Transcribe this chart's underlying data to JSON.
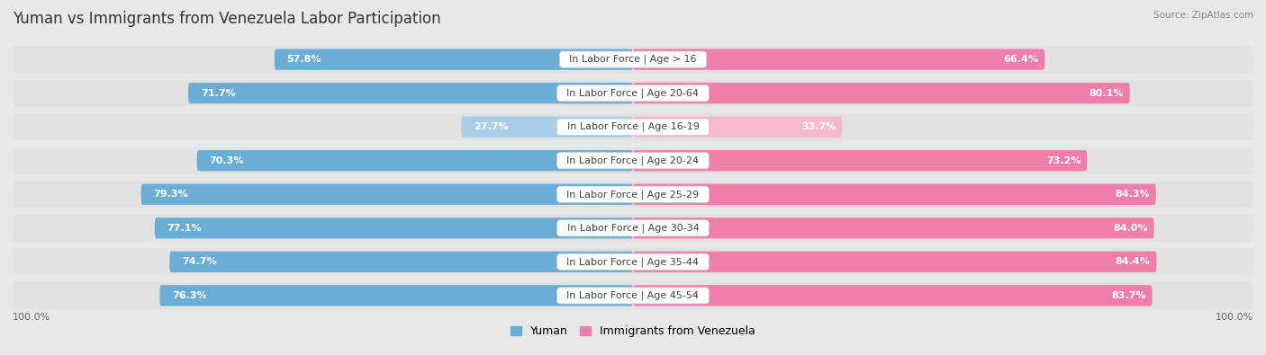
{
  "title": "Yuman vs Immigrants from Venezuela Labor Participation",
  "source": "Source: ZipAtlas.com",
  "categories": [
    "In Labor Force | Age > 16",
    "In Labor Force | Age 20-64",
    "In Labor Force | Age 16-19",
    "In Labor Force | Age 20-24",
    "In Labor Force | Age 25-29",
    "In Labor Force | Age 30-34",
    "In Labor Force | Age 35-44",
    "In Labor Force | Age 45-54"
  ],
  "yuman_values": [
    57.8,
    71.7,
    27.7,
    70.3,
    79.3,
    77.1,
    74.7,
    76.3
  ],
  "venezuela_values": [
    66.4,
    80.1,
    33.7,
    73.2,
    84.3,
    84.0,
    84.4,
    83.7
  ],
  "yuman_color": "#6aaed6",
  "yuman_color_light": "#aacde8",
  "venezuela_color": "#f07eab",
  "venezuela_color_light": "#f5b8d0",
  "background_color": "#e8e8e8",
  "row_bg_color": "#d8d8d8",
  "row_inner_bg": "#f0f0f0",
  "title_fontsize": 12,
  "label_fontsize": 8,
  "value_fontsize": 8,
  "legend_fontsize": 9,
  "axis_label_fontsize": 8,
  "bar_height": 0.62,
  "max_value": 100.0
}
